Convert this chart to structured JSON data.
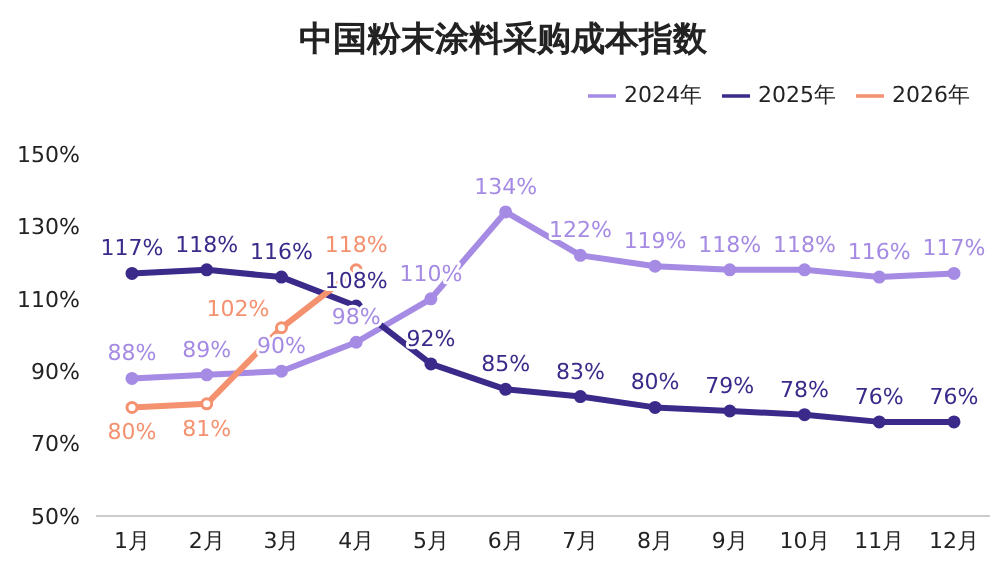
{
  "chart_data": {
    "type": "line",
    "title": "中国粉末涂料采购成本指数",
    "categories": [
      "1月",
      "2月",
      "3月",
      "4月",
      "5月",
      "6月",
      "7月",
      "8月",
      "9月",
      "10月",
      "11月",
      "12月"
    ],
    "series": [
      {
        "name": "2024年",
        "color": "#a58be3",
        "values": [
          88,
          89,
          90,
          98,
          110,
          134,
          122,
          119,
          118,
          118,
          116,
          117
        ],
        "value_labels": [
          "88%",
          "89%",
          "90%",
          "98%",
          "110%",
          "134%",
          "122%",
          "119%",
          "118%",
          "118%",
          "116%",
          "117%"
        ]
      },
      {
        "name": "2025年",
        "color": "#3b2a8a",
        "values": [
          117,
          118,
          116,
          108,
          92,
          85,
          83,
          80,
          79,
          78,
          76,
          76
        ],
        "value_labels": [
          "117%",
          "118%",
          "116%",
          "108%",
          "92%",
          "85%",
          "83%",
          "80%",
          "79%",
          "78%",
          "76%",
          "76%"
        ]
      },
      {
        "name": "2026年",
        "color": "#f4916f",
        "values": [
          80,
          81,
          102,
          118,
          null,
          null,
          null,
          null,
          null,
          null,
          null,
          null
        ],
        "value_labels": [
          "80%",
          "81%",
          "102%",
          "118%",
          null,
          null,
          null,
          null,
          null,
          null,
          null,
          null
        ]
      }
    ],
    "ylim": [
      50,
      150
    ],
    "yticks": [
      {
        "value": 50,
        "label": "50%"
      },
      {
        "value": 70,
        "label": "70%"
      },
      {
        "value": 90,
        "label": "90%"
      },
      {
        "value": 110,
        "label": "110%"
      },
      {
        "value": 130,
        "label": "130%"
      },
      {
        "value": 150,
        "label": "150%"
      }
    ],
    "legend": "top right",
    "marker": "circle",
    "grid": false,
    "line_style": "solid"
  }
}
